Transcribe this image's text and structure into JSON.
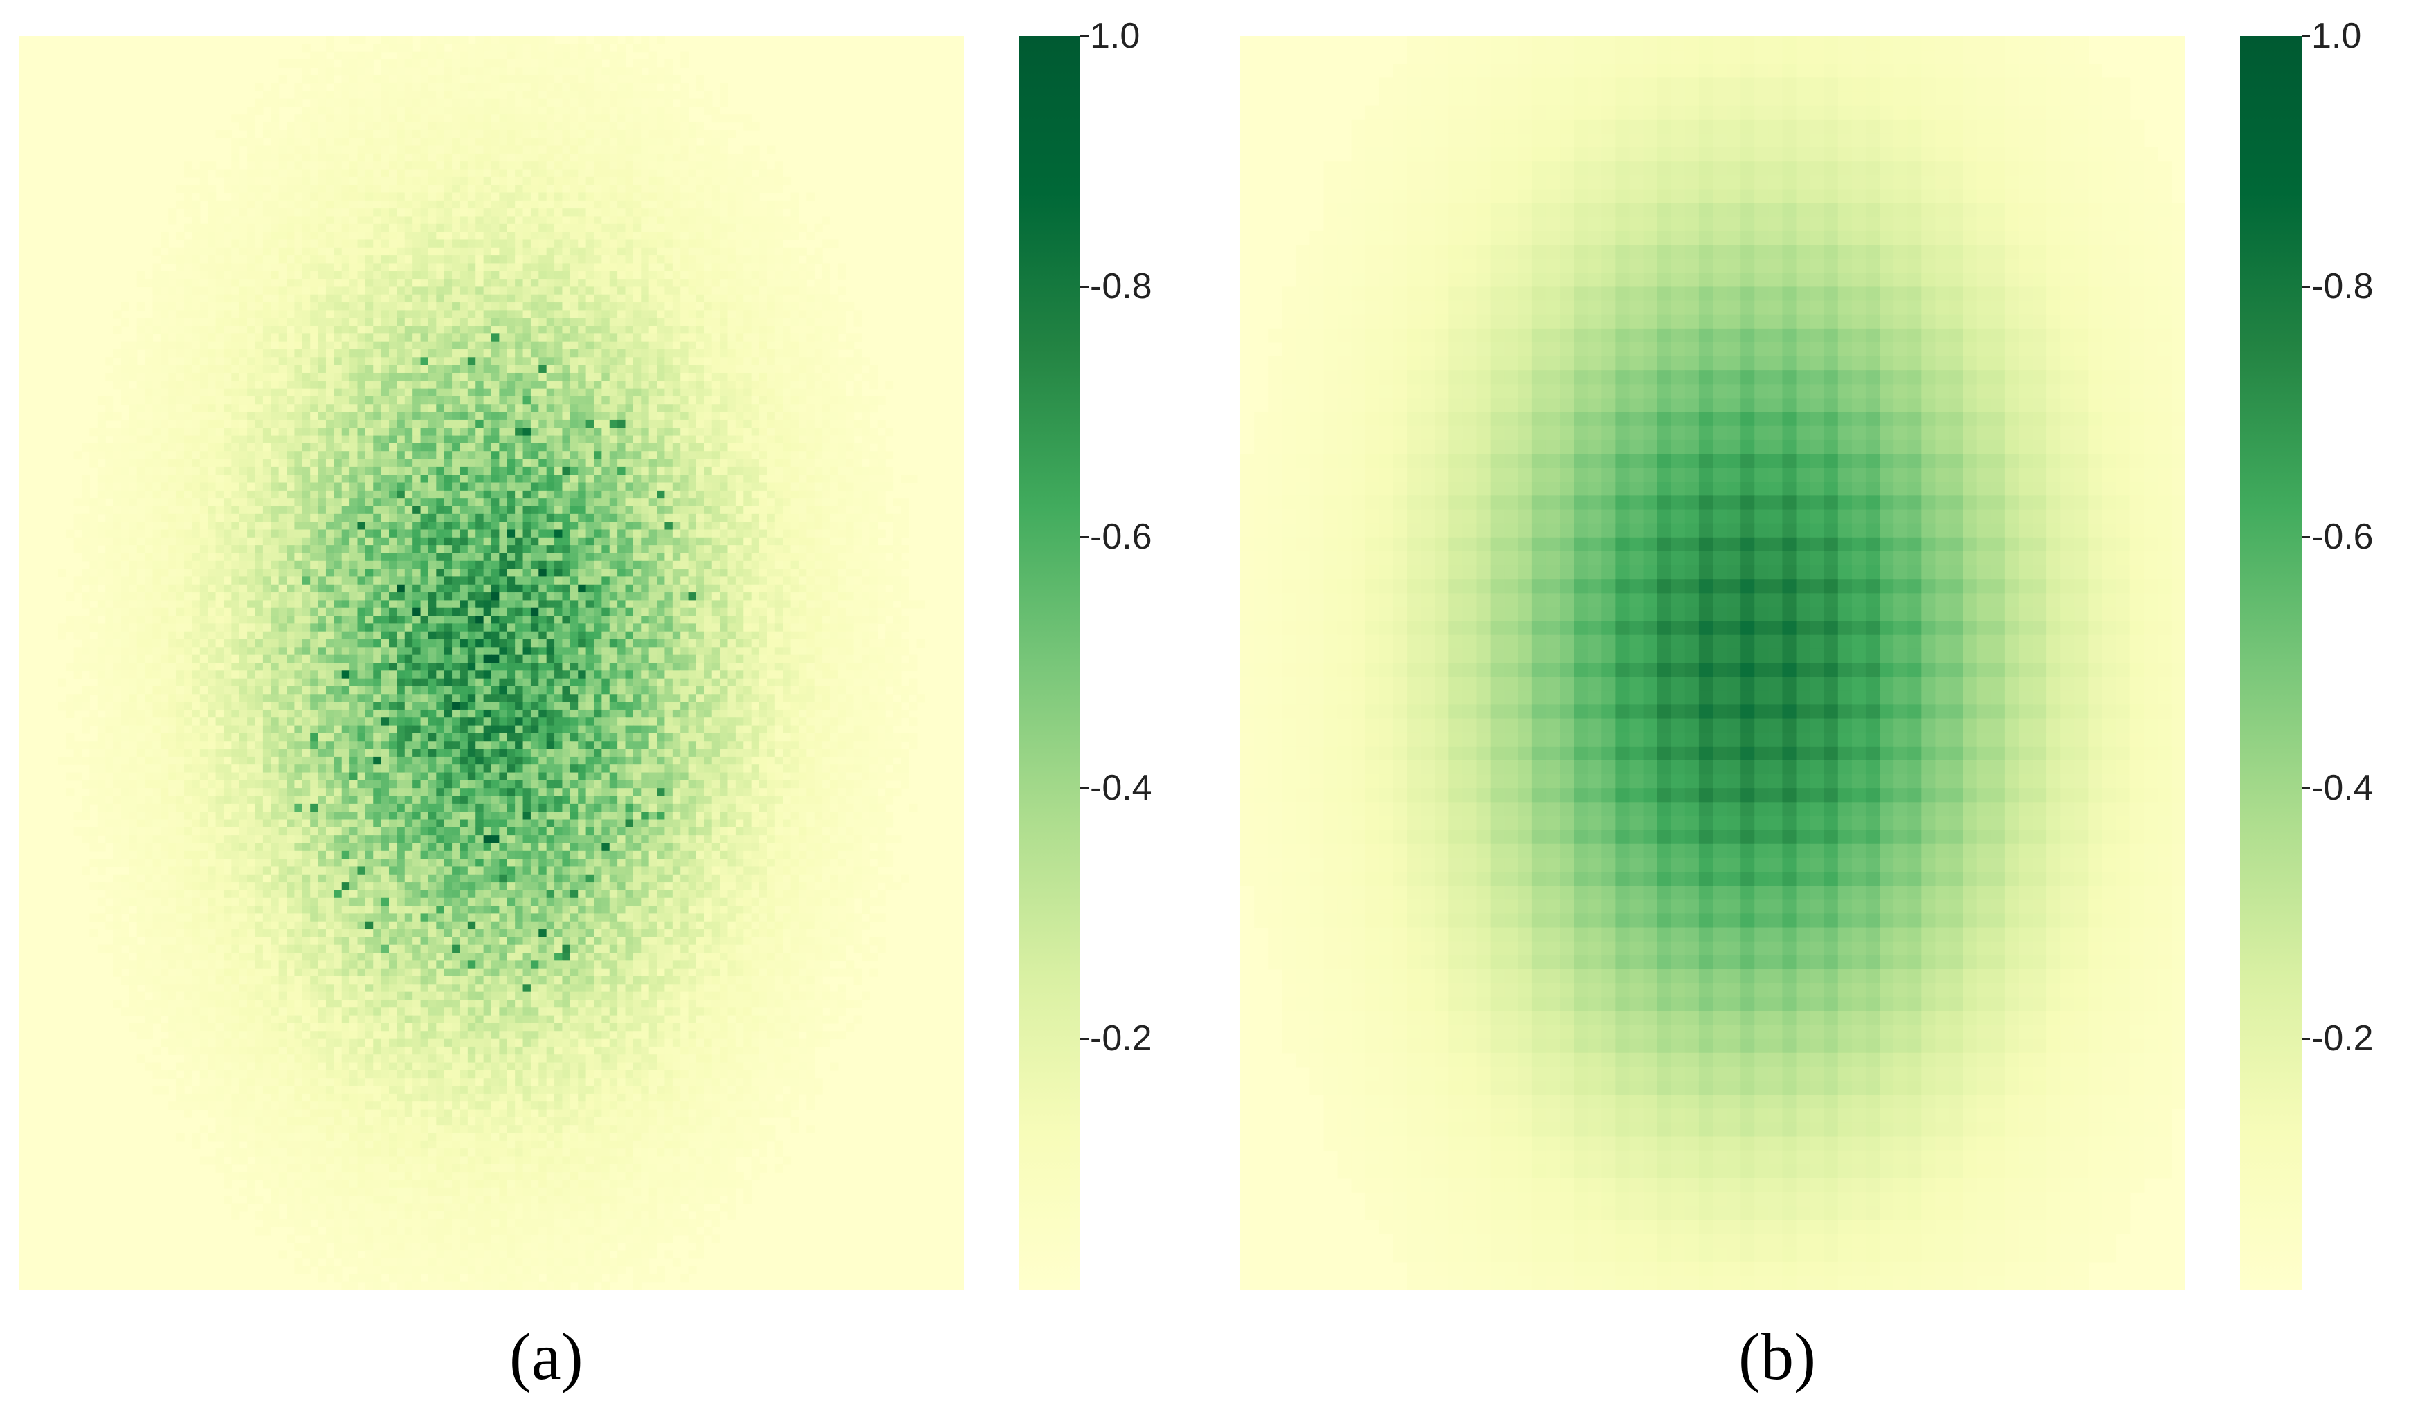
{
  "chart_data": [
    {
      "type": "heatmap",
      "caption": "(a)",
      "colormap": "YlGn",
      "colorbar": {
        "min": 0,
        "max": 1.0,
        "ticks": [
          "1.0",
          "-0.8",
          "-0.6",
          "-0.4",
          "-0.2"
        ],
        "tick_values": [
          1.0,
          0.8,
          0.6,
          0.4,
          0.2
        ]
      },
      "pattern": "noisy, fine-grained",
      "peak_value": 0.75,
      "colors": {
        "low": "#ffffcc",
        "high": "#006837"
      }
    },
    {
      "type": "heatmap",
      "caption": "(b)",
      "colormap": "YlGn",
      "colorbar": {
        "min": 0,
        "max": 1.0,
        "ticks": [
          "1.0",
          "-0.8",
          "-0.6",
          "-0.4",
          "-0.2"
        ],
        "tick_values": [
          1.0,
          0.8,
          0.6,
          0.4,
          0.2
        ]
      },
      "pattern": "smooth, grid-patterned",
      "peak_value": 0.72,
      "colors": {
        "low": "#ffffcc",
        "high": "#006837"
      }
    }
  ]
}
